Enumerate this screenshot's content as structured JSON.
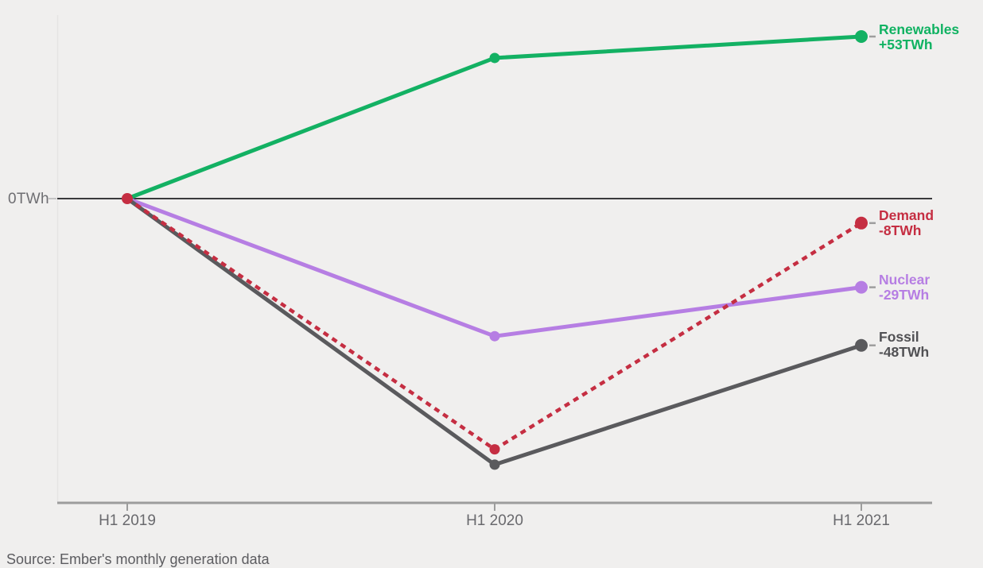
{
  "chart_data": {
    "type": "line",
    "title": "",
    "x_categories": [
      "H1 2019",
      "H1 2020",
      "H1 2021"
    ],
    "series": [
      {
        "name": "Renewables",
        "values": [
          0,
          46,
          53
        ],
        "delta_label": "+53TWh",
        "color": "#13b163",
        "line_style": "solid"
      },
      {
        "name": "Demand",
        "values": [
          0,
          -82,
          -8
        ],
        "delta_label": "-8TWh",
        "color": "#c52e42",
        "line_style": "dashed"
      },
      {
        "name": "Nuclear",
        "values": [
          0,
          -45,
          -29
        ],
        "delta_label": "-29TWh",
        "color": "#b67ee3",
        "line_style": "solid"
      },
      {
        "name": "Fossil",
        "values": [
          0,
          -87,
          -48
        ],
        "delta_label": "-48TWh",
        "color": "#5a5a5d",
        "line_style": "solid"
      }
    ],
    "y_zero_label": "0TWh",
    "ylabel": "",
    "xlabel": "",
    "ylim": [
      -100,
      60
    ],
    "grid": false,
    "legend_position": "right-end-labels",
    "source": "Source: Ember's monthly generation data",
    "colors": {
      "background": "#f0efee",
      "zero_line": "#3a3a3c",
      "axis_line": "#9c9c9c",
      "tick_text": "#69696d"
    }
  }
}
